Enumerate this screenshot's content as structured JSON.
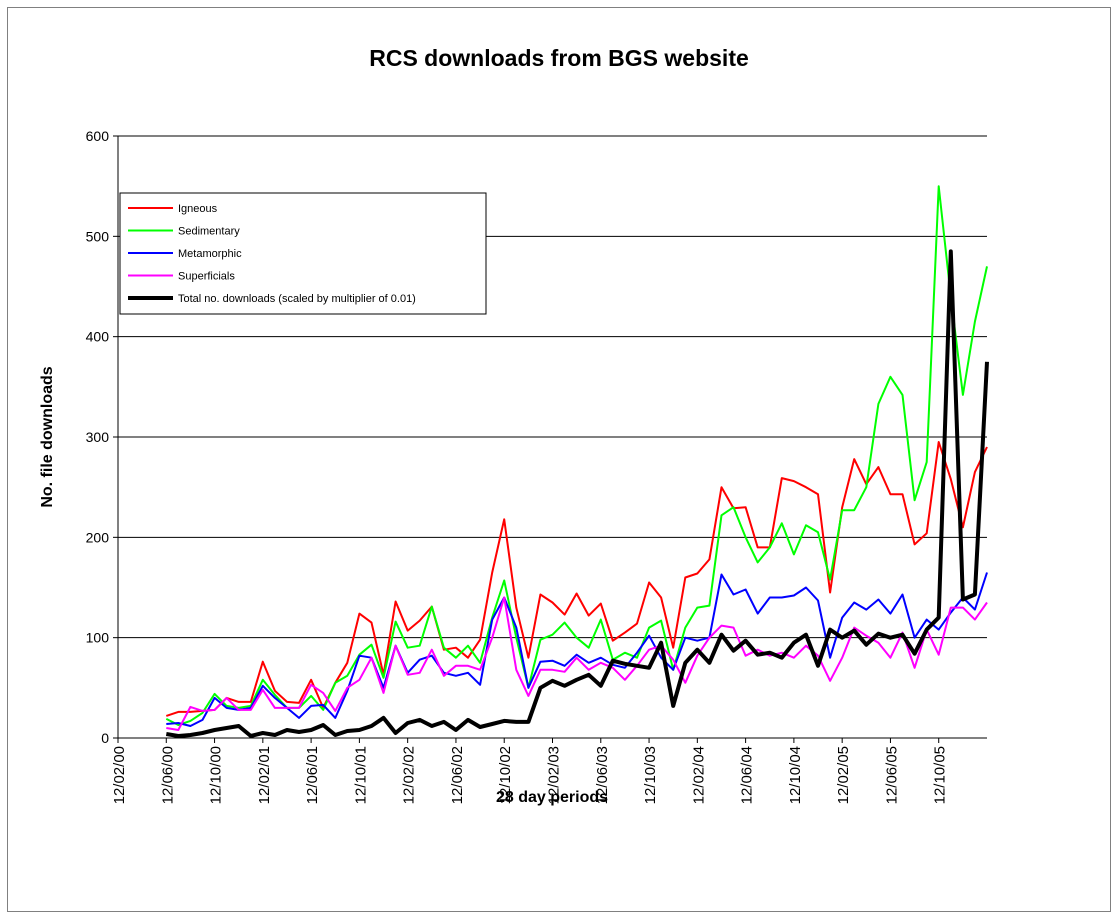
{
  "chart_data": {
    "type": "line",
    "title": "RCS downloads from BGS website",
    "x_label": "28 day periods",
    "y_label": "No. file downloads",
    "categories": [
      "12/02/00",
      null,
      null,
      null,
      "12/06/00",
      null,
      null,
      null,
      "12/10/00",
      null,
      null,
      null,
      "12/02/01",
      null,
      null,
      null,
      "12/06/01",
      null,
      null,
      null,
      "12/10/01",
      null,
      null,
      null,
      "12/02/02",
      null,
      null,
      null,
      "12/06/02",
      null,
      null,
      null,
      "12/10/02",
      null,
      null,
      null,
      "12/02/03",
      null,
      null,
      null,
      "12/06/03",
      null,
      null,
      null,
      "12/10/03",
      null,
      null,
      null,
      "12/02/04",
      null,
      null,
      null,
      "12/06/04",
      null,
      null,
      null,
      "12/10/04",
      null,
      null,
      null,
      "12/02/05",
      null,
      null,
      null,
      "12/06/05",
      null,
      null,
      null,
      "12/10/05",
      null,
      null,
      null,
      null
    ],
    "series": [
      {
        "name": "Igneous",
        "color": "#ff0000",
        "width": 2,
        "values": [
          null,
          null,
          null,
          null,
          22,
          26,
          26,
          27,
          28,
          40,
          36,
          36,
          76,
          47,
          36,
          35,
          58,
          30,
          55,
          75,
          124,
          115,
          63,
          136,
          107,
          117,
          131,
          88,
          90,
          80,
          98,
          165,
          218,
          130,
          80,
          143,
          135,
          123,
          144,
          122,
          134,
          97,
          105,
          114,
          155,
          140,
          90,
          160,
          164,
          178,
          250,
          229,
          230,
          190,
          190,
          259,
          256,
          250,
          243,
          145,
          230,
          278,
          253,
          270,
          243,
          243,
          193,
          204,
          295,
          258,
          210,
          265,
          290
        ]
      },
      {
        "name": "Sedimentary",
        "color": "#00ff00",
        "width": 2,
        "values": [
          null,
          null,
          null,
          null,
          19,
          13,
          17,
          25,
          44,
          32,
          30,
          32,
          58,
          43,
          30,
          30,
          42,
          28,
          55,
          62,
          83,
          93,
          60,
          116,
          90,
          92,
          131,
          90,
          80,
          92,
          75,
          120,
          157,
          100,
          50,
          98,
          103,
          115,
          100,
          90,
          118,
          78,
          85,
          80,
          110,
          117,
          68,
          110,
          130,
          132,
          222,
          230,
          200,
          175,
          190,
          214,
          183,
          212,
          205,
          158,
          227,
          227,
          250,
          333,
          360,
          342,
          237,
          275,
          550,
          440,
          342,
          415,
          470
        ]
      },
      {
        "name": "Metamorphic",
        "color": "#0000ff",
        "width": 2,
        "values": [
          null,
          null,
          null,
          null,
          14,
          15,
          12,
          18,
          40,
          30,
          28,
          30,
          52,
          40,
          30,
          20,
          32,
          33,
          20,
          47,
          82,
          80,
          50,
          92,
          65,
          78,
          82,
          65,
          62,
          65,
          53,
          118,
          140,
          110,
          50,
          76,
          77,
          72,
          83,
          75,
          80,
          73,
          70,
          85,
          102,
          80,
          68,
          100,
          97,
          100,
          163,
          143,
          148,
          124,
          140,
          140,
          142,
          150,
          137,
          80,
          120,
          135,
          128,
          138,
          124,
          143,
          100,
          118,
          108,
          125,
          140,
          128,
          165
        ]
      },
      {
        "name": "Superficials",
        "color": "#ff00ff",
        "width": 2,
        "values": [
          null,
          null,
          null,
          null,
          10,
          8,
          31,
          27,
          28,
          40,
          28,
          28,
          48,
          30,
          30,
          30,
          53,
          45,
          27,
          50,
          58,
          80,
          45,
          92,
          63,
          65,
          88,
          62,
          72,
          72,
          68,
          100,
          140,
          68,
          42,
          68,
          68,
          66,
          80,
          68,
          75,
          70,
          58,
          72,
          88,
          92,
          78,
          55,
          82,
          100,
          112,
          110,
          82,
          88,
          82,
          85,
          80,
          92,
          82,
          57,
          80,
          110,
          102,
          95,
          80,
          105,
          70,
          108,
          83,
          130,
          130,
          118,
          135
        ]
      },
      {
        "name": "Total no. downloads (scaled by multiplier of 0.01)",
        "color": "#000000",
        "width": 4,
        "values": [
          null,
          null,
          null,
          null,
          4,
          2,
          3,
          5,
          8,
          10,
          12,
          2,
          5,
          3,
          8,
          6,
          8,
          13,
          3,
          7,
          8,
          12,
          20,
          5,
          15,
          18,
          12,
          16,
          8,
          18,
          11,
          14,
          17,
          16,
          16,
          50,
          57,
          52,
          58,
          63,
          52,
          77,
          74,
          72,
          70,
          95,
          32,
          75,
          88,
          75,
          103,
          87,
          97,
          83,
          85,
          80,
          95,
          103,
          72,
          108,
          100,
          107,
          93,
          104,
          100,
          103,
          84,
          108,
          120,
          485,
          138,
          143,
          375
        ]
      }
    ],
    "ylim": [
      0,
      600
    ],
    "yticks": [
      0,
      100,
      200,
      300,
      400,
      500,
      600
    ],
    "grid": true,
    "legend": "upper left"
  }
}
